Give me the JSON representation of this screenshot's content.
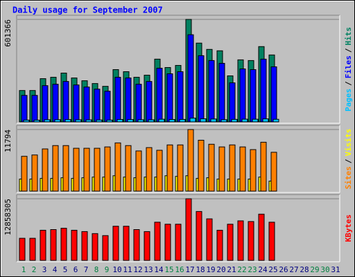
{
  "chart_data": {
    "type": "bar",
    "title": "Daily usage for September 2007",
    "separator": "/",
    "categories": [
      "1",
      "2",
      "3",
      "4",
      "5",
      "6",
      "7",
      "8",
      "9",
      "10",
      "11",
      "12",
      "13",
      "14",
      "15",
      "16",
      "17",
      "18",
      "19",
      "20",
      "21",
      "22",
      "23",
      "24",
      "25",
      "26",
      "27",
      "28",
      "29",
      "30",
      "31"
    ],
    "x_label_colors": [
      "#008040",
      "#008040",
      "#000080",
      "#000080",
      "#000080",
      "#000080",
      "#000080",
      "#008040",
      "#008040",
      "#000080",
      "#000080",
      "#000080",
      "#000080",
      "#000080",
      "#008040",
      "#008040",
      "#000080",
      "#000080",
      "#000080",
      "#000080",
      "#000080",
      "#008040",
      "#008040",
      "#000080",
      "#000080",
      "#000080",
      "#000080",
      "#000080",
      "#008040",
      "#008040",
      "#000080"
    ],
    "panels": [
      {
        "ylim": [
          0,
          601366
        ],
        "yticks": [
          601366
        ],
        "series": [
          {
            "name": "Pages",
            "color": "#00c0ff",
            "values": [
              10500,
              10200,
              12800,
              13100,
              13900,
              12600,
              12000,
              11300,
              10600,
              14200,
              13800,
              12700,
              12400,
              15600,
              14100,
              14500,
              22000,
              18100,
              16900,
              13000,
              14800,
              16000,
              15700,
              17800,
              15200,
              null,
              null,
              null,
              null,
              null,
              null
            ]
          },
          {
            "name": "Files",
            "color": "#0000ff",
            "values": [
              155458,
              155458,
              212732,
              220914,
              237278,
              216823,
              204550,
              192277,
              180004,
              261824,
              257733,
              220914,
              237278,
              315007,
              282279,
              294552,
              511375,
              388645,
              360008,
              343644,
              229096,
              310916,
              306825,
              368190,
              323189,
              null,
              null,
              null,
              null,
              null,
              null
            ]
          },
          {
            "name": "Hits",
            "color": "#008060",
            "values": [
              184095,
              184095,
              253642,
              261824,
              286370,
              257733,
              241369,
              225005,
              208641,
              306825,
              294552,
              261824,
              274097,
              368190,
              319098,
              331371,
              601366,
              462283,
              425464,
              417282,
              270006,
              364099,
              360008,
              441828,
              392736,
              null,
              null,
              null,
              null,
              null,
              null
            ]
          }
        ]
      },
      {
        "ylim": [
          0,
          11794
        ],
        "yticks": [
          11794
        ],
        "series": [
          {
            "name": "Sites",
            "color": "#ff8000",
            "values": [
              6666,
              6923,
              8077,
              8718,
              8718,
              8205,
              8205,
              8205,
              8461,
              9230,
              8718,
              7692,
              8333,
              7820,
              8846,
              8846,
              11794,
              9743,
              8974,
              8461,
              8846,
              8461,
              7948,
              9359,
              7436,
              null,
              null,
              null,
              null,
              null,
              null
            ]
          },
          {
            "name": "Visits",
            "color": "#ffff00",
            "values": [
              2308,
              2308,
              2436,
              2436,
              2564,
              2436,
              2564,
              2692,
              2692,
              2949,
              2692,
              2564,
              2692,
              2692,
              2949,
              2820,
              2949,
              2436,
              2564,
              2308,
              2308,
              2308,
              2308,
              2692,
              1923,
              null,
              null,
              null,
              null,
              null,
              null
            ]
          }
        ]
      },
      {
        "ylim": [
          0,
          12858305
        ],
        "yticks": [
          12858305
        ],
        "series": [
          {
            "name": "KBytes",
            "color": "#ff0000",
            "values": [
              4612212,
              4612212,
              6289380,
              6429144,
              6708672,
              6289380,
              6009852,
              5590560,
              5171268,
              7127964,
              7127964,
              6429144,
              6009852,
              7966548,
              7547256,
              7547256,
              12858305,
              10202772,
              8665368,
              6289380,
              7547256,
              8246076,
              8106312,
              9643716,
              7966548,
              null,
              null,
              null,
              null,
              null,
              null
            ]
          }
        ]
      }
    ]
  }
}
